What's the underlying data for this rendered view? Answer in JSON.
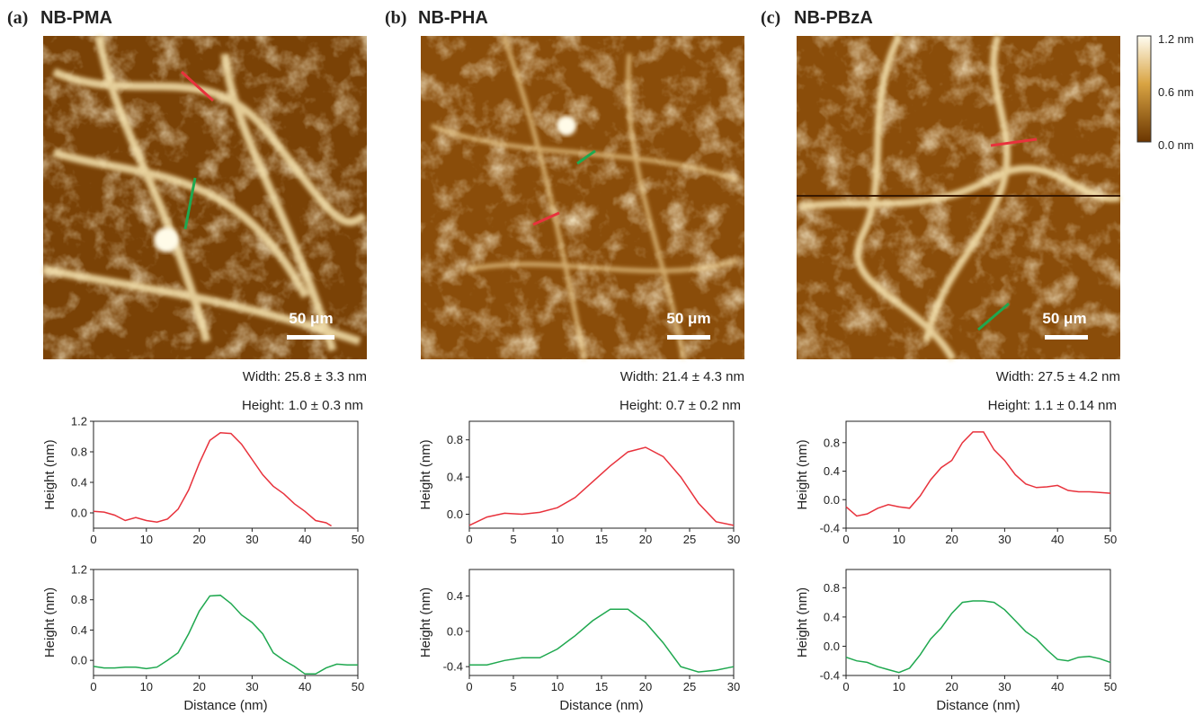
{
  "panels": [
    {
      "label": "(a)",
      "title": "NB-PMA",
      "scale_bar": "50 μm",
      "width": "Width: 25.8 ± 3.3 nm",
      "height": "Height: 1.0 ± 0.3 nm"
    },
    {
      "label": "(b)",
      "title": "NB-PHA",
      "scale_bar": "50 μm",
      "width": "Width: 21.4 ± 4.3 nm",
      "height": "Height: 0.7 ± 0.2 nm"
    },
    {
      "label": "(c)",
      "title": "NB-PBzA",
      "scale_bar": "50 μm",
      "width": "Width: 27.5 ± 4.2 nm",
      "height": "Height: 1.1 ± 0.14 nm"
    }
  ],
  "colorbar": {
    "labels": [
      "1.2 nm",
      "0.6 nm",
      "0.0 nm"
    ]
  },
  "chart_data": [
    {
      "type": "line",
      "ylabel": "Height (nm)",
      "x": [
        0,
        2,
        4,
        6,
        8,
        10,
        12,
        14,
        16,
        18,
        20,
        22,
        24,
        26,
        28,
        30,
        32,
        34,
        36,
        38,
        40,
        42,
        44,
        45
      ],
      "series": [
        {
          "color": "#e8323c",
          "values": [
            0.02,
            0.01,
            -0.03,
            -0.1,
            -0.06,
            -0.1,
            -0.12,
            -0.08,
            0.05,
            0.3,
            0.65,
            0.95,
            1.05,
            1.04,
            0.9,
            0.7,
            0.5,
            0.35,
            0.25,
            0.12,
            0.02,
            -0.1,
            -0.13,
            -0.17
          ]
        }
      ],
      "xlim": [
        0,
        50
      ],
      "xticks": [
        0,
        10,
        20,
        30,
        40,
        50
      ],
      "ylim": [
        -0.2,
        1.2
      ],
      "yticks": [
        {
          "value": 0,
          "label": "0.0"
        },
        0.4,
        0.8,
        1.2
      ]
    },
    {
      "type": "line",
      "ylabel": "Height (nm)",
      "xlabel": "Distance (nm)",
      "x": [
        0,
        2,
        4,
        6,
        8,
        10,
        12,
        14,
        16,
        18,
        20,
        22,
        24,
        26,
        28,
        30,
        32,
        34,
        36,
        38,
        40,
        42,
        44,
        46,
        48,
        50
      ],
      "series": [
        {
          "color": "#1fa84f",
          "values": [
            -0.08,
            -0.1,
            -0.1,
            -0.09,
            -0.09,
            -0.11,
            -0.09,
            0.0,
            0.1,
            0.35,
            0.65,
            0.85,
            0.86,
            0.75,
            0.6,
            0.5,
            0.35,
            0.1,
            0.0,
            -0.08,
            -0.18,
            -0.18,
            -0.1,
            -0.05,
            -0.06,
            -0.06
          ]
        }
      ],
      "xlim": [
        0,
        50
      ],
      "xticks": [
        0,
        10,
        20,
        30,
        40,
        50
      ],
      "ylim": [
        -0.2,
        1.2
      ],
      "yticks": [
        {
          "value": 0,
          "label": "0.0"
        },
        0.4,
        0.8,
        1.2
      ]
    },
    {
      "type": "line",
      "ylabel": "Height (nm)",
      "x": [
        0,
        2,
        4,
        6,
        8,
        10,
        12,
        14,
        16,
        18,
        20,
        22,
        24,
        26,
        28,
        30
      ],
      "series": [
        {
          "color": "#e8323c",
          "values": [
            -0.12,
            -0.03,
            0.01,
            0.0,
            0.02,
            0.07,
            0.18,
            0.35,
            0.52,
            0.67,
            0.72,
            0.62,
            0.4,
            0.12,
            -0.08,
            -0.12
          ]
        }
      ],
      "xlim": [
        0,
        30
      ],
      "xticks": [
        0,
        5,
        10,
        15,
        20,
        25,
        30
      ],
      "ylim": [
        -0.15,
        1.0
      ],
      "yticks": [
        {
          "value": 0,
          "label": "0.0"
        },
        0.4,
        0.8
      ]
    },
    {
      "type": "line",
      "ylabel": "Height (nm)",
      "xlabel": "Distance (nm)",
      "x": [
        0,
        2,
        4,
        6,
        8,
        10,
        12,
        14,
        16,
        18,
        20,
        22,
        24,
        26,
        28,
        30
      ],
      "series": [
        {
          "color": "#1fa84f",
          "values": [
            -0.38,
            -0.38,
            -0.33,
            -0.3,
            -0.3,
            -0.2,
            -0.05,
            0.12,
            0.25,
            0.25,
            0.1,
            -0.13,
            -0.4,
            -0.46,
            -0.44,
            -0.4
          ]
        }
      ],
      "xlim": [
        0,
        30
      ],
      "xticks": [
        0,
        5,
        10,
        15,
        20,
        25,
        30
      ],
      "ylim": [
        -0.5,
        0.7
      ],
      "yticks": [
        -0.4,
        {
          "value": 0,
          "label": "0.0"
        },
        0.4
      ]
    },
    {
      "type": "line",
      "ylabel": "Height (nm)",
      "x": [
        0,
        2,
        4,
        6,
        8,
        10,
        12,
        14,
        16,
        18,
        20,
        22,
        24,
        26,
        28,
        30,
        32,
        34,
        36,
        38,
        40,
        42,
        44,
        46,
        48,
        50
      ],
      "series": [
        {
          "color": "#e8323c",
          "values": [
            -0.1,
            -0.23,
            -0.2,
            -0.12,
            -0.07,
            -0.1,
            -0.12,
            0.05,
            0.28,
            0.45,
            0.55,
            0.8,
            0.95,
            0.95,
            0.7,
            0.55,
            0.35,
            0.22,
            0.17,
            0.18,
            0.2,
            0.13,
            0.11,
            0.11,
            0.1,
            0.09
          ]
        }
      ],
      "xlim": [
        0,
        50
      ],
      "xticks": [
        0,
        10,
        20,
        30,
        40,
        50
      ],
      "ylim": [
        -0.4,
        1.1
      ],
      "yticks": [
        -0.4,
        {
          "value": 0,
          "label": "0.0"
        },
        0.4,
        0.8
      ]
    },
    {
      "type": "line",
      "ylabel": "Height (nm)",
      "xlabel": "Distance (nm)",
      "x": [
        0,
        2,
        4,
        6,
        8,
        10,
        12,
        14,
        16,
        18,
        20,
        22,
        24,
        26,
        28,
        30,
        32,
        34,
        36,
        38,
        40,
        42,
        44,
        46,
        48,
        50
      ],
      "series": [
        {
          "color": "#1fa84f",
          "values": [
            -0.15,
            -0.2,
            -0.22,
            -0.28,
            -0.32,
            -0.36,
            -0.3,
            -0.12,
            0.1,
            0.25,
            0.45,
            0.6,
            0.62,
            0.62,
            0.6,
            0.5,
            0.35,
            0.2,
            0.1,
            -0.05,
            -0.18,
            -0.2,
            -0.15,
            -0.14,
            -0.17,
            -0.22
          ]
        }
      ],
      "xlim": [
        0,
        50
      ],
      "xticks": [
        0,
        10,
        20,
        30,
        40,
        50
      ],
      "ylim": [
        -0.4,
        1.05
      ],
      "yticks": [
        -0.4,
        {
          "value": 0,
          "label": "0.0"
        },
        0.4,
        0.8
      ]
    }
  ]
}
